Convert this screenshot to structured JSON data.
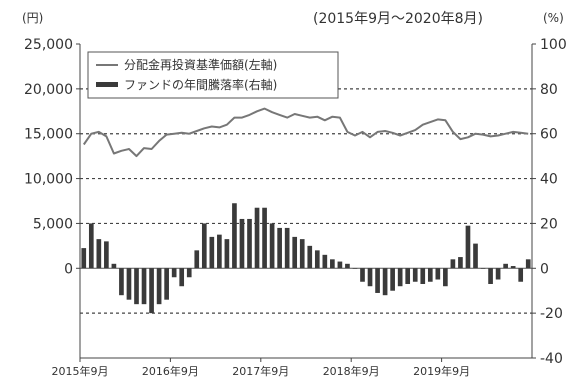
{
  "chart_data": {
    "type": "bar+line",
    "period": "(2015年9月〜2020年8月)",
    "left_axis": {
      "unit": "(円)",
      "ticks": [
        "25,000",
        "20,000",
        "15,000",
        "10,000",
        "5,000",
        "0"
      ],
      "ylim": [
        -10000,
        25000
      ]
    },
    "right_axis": {
      "unit": "(%)",
      "ticks": [
        "100",
        "80",
        "60",
        "40",
        "20",
        "0",
        "-20",
        "-40"
      ],
      "ylim": [
        -40,
        100
      ]
    },
    "x_tick_labels": [
      "2015年9月",
      "2016年9月",
      "2017年9月",
      "2018年9月",
      "2019年9月"
    ],
    "x_tick_month_index": [
      0,
      12,
      24,
      36,
      48
    ],
    "gridlines_right_axis": [
      80,
      60,
      40,
      20,
      -20
    ],
    "legend": {
      "line_label": "分配金再投資基準価額(左軸)",
      "bar_label": "ファンドの年間騰落率(右軸)"
    },
    "line_series": {
      "name": "分配金再投資基準価額(左軸)",
      "axis": "left",
      "color": "#777777",
      "values": [
        13800,
        15000,
        15200,
        14700,
        12800,
        13100,
        13300,
        12500,
        13400,
        13300,
        14200,
        14900,
        15000,
        15100,
        15000,
        15300,
        15600,
        15800,
        15700,
        16000,
        16800,
        16800,
        17100,
        17500,
        17800,
        17400,
        17100,
        16800,
        17200,
        17000,
        16800,
        16900,
        16500,
        16900,
        16800,
        15200,
        14800,
        15200,
        14600,
        15200,
        15300,
        15100,
        14800,
        15100,
        15400,
        16000,
        16300,
        16600,
        16500,
        15200,
        14400,
        14600,
        15000,
        14900,
        14700,
        14800,
        15000,
        15200,
        15100,
        15000
      ]
    },
    "bar_series": {
      "name": "ファンドの年間騰落率(右軸)",
      "axis": "right",
      "color": "#3a3a3a",
      "values": [
        9,
        20,
        13,
        12,
        2,
        -12,
        -14,
        -16,
        -16,
        -20,
        -16,
        -14,
        -4,
        -8,
        -4,
        8,
        20,
        14,
        15,
        13,
        29,
        22,
        22,
        27,
        27,
        20,
        18,
        18,
        14,
        13,
        10,
        8,
        6,
        4,
        3,
        2,
        0,
        -6,
        -8,
        -11,
        -12,
        -10,
        -8,
        -7,
        -6,
        -7,
        -6,
        -5,
        -8,
        4,
        5,
        19,
        11,
        0,
        -7,
        -5,
        2,
        1,
        -6,
        4
      ]
    }
  }
}
